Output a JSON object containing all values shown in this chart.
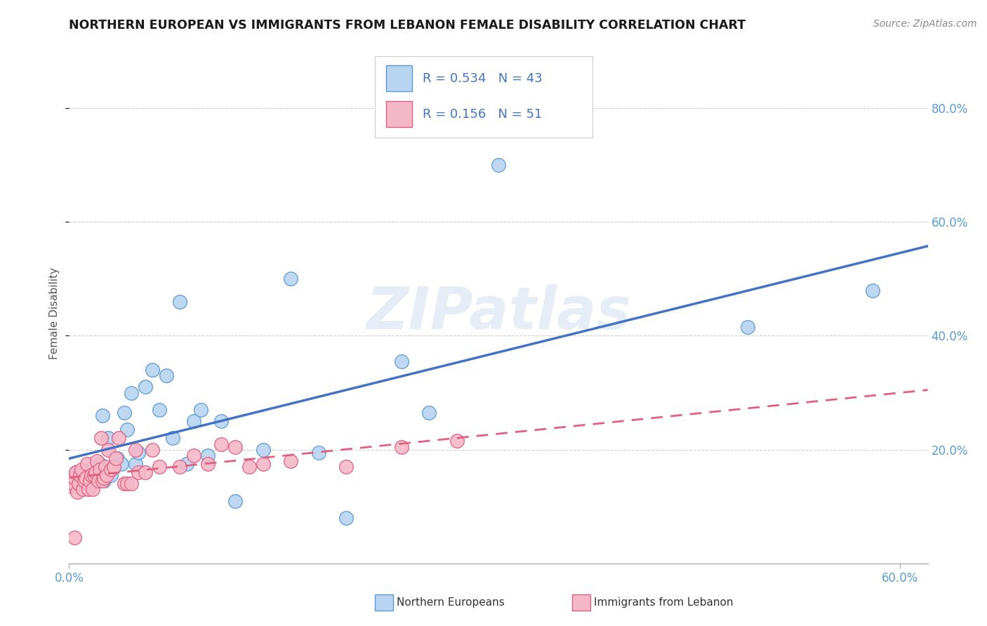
{
  "title": "NORTHERN EUROPEAN VS IMMIGRANTS FROM LEBANON FEMALE DISABILITY CORRELATION CHART",
  "source": "Source: ZipAtlas.com",
  "ylabel": "Female Disability",
  "xlim": [
    0.0,
    0.62
  ],
  "ylim": [
    0.0,
    0.88
  ],
  "xtick_vals": [
    0.0,
    0.6
  ],
  "xtick_labels": [
    "0.0%",
    "60.0%"
  ],
  "ytick_vals": [
    0.2,
    0.4,
    0.6,
    0.8
  ],
  "ytick_labels": [
    "20.0%",
    "40.0%",
    "60.0%",
    "80.0%"
  ],
  "blue_R": 0.534,
  "blue_N": 43,
  "pink_R": 0.156,
  "pink_N": 51,
  "blue_color": "#b8d4f0",
  "pink_color": "#f5b8c8",
  "blue_edge_color": "#5b9bd5",
  "pink_edge_color": "#e06080",
  "blue_line_color": "#4472c4",
  "pink_line_color": "#e06080",
  "legend_label_blue": "Northern Europeans",
  "legend_label_pink": "Immigrants from Lebanon",
  "watermark": "ZIPatlas",
  "blue_x": [
    0.005,
    0.008,
    0.01,
    0.012,
    0.015,
    0.016,
    0.018,
    0.02,
    0.022,
    0.024,
    0.025,
    0.026,
    0.028,
    0.03,
    0.032,
    0.035,
    0.038,
    0.04,
    0.042,
    0.045,
    0.048,
    0.05,
    0.055,
    0.06,
    0.065,
    0.07,
    0.075,
    0.08,
    0.085,
    0.09,
    0.095,
    0.1,
    0.11,
    0.12,
    0.14,
    0.16,
    0.18,
    0.2,
    0.24,
    0.26,
    0.31,
    0.49,
    0.58
  ],
  "blue_y": [
    0.16,
    0.15,
    0.145,
    0.155,
    0.14,
    0.165,
    0.17,
    0.155,
    0.175,
    0.26,
    0.145,
    0.165,
    0.22,
    0.155,
    0.17,
    0.185,
    0.175,
    0.265,
    0.235,
    0.3,
    0.175,
    0.195,
    0.31,
    0.34,
    0.27,
    0.33,
    0.22,
    0.46,
    0.175,
    0.25,
    0.27,
    0.19,
    0.25,
    0.11,
    0.2,
    0.5,
    0.195,
    0.08,
    0.355,
    0.265,
    0.7,
    0.415,
    0.48
  ],
  "pink_x": [
    0.002,
    0.003,
    0.004,
    0.005,
    0.006,
    0.007,
    0.008,
    0.009,
    0.01,
    0.011,
    0.012,
    0.013,
    0.014,
    0.015,
    0.016,
    0.017,
    0.018,
    0.019,
    0.02,
    0.021,
    0.022,
    0.023,
    0.024,
    0.025,
    0.026,
    0.027,
    0.028,
    0.03,
    0.032,
    0.034,
    0.036,
    0.04,
    0.042,
    0.045,
    0.048,
    0.05,
    0.055,
    0.06,
    0.065,
    0.08,
    0.09,
    0.1,
    0.11,
    0.12,
    0.13,
    0.14,
    0.16,
    0.2,
    0.24,
    0.28,
    0.004
  ],
  "pink_y": [
    0.135,
    0.14,
    0.15,
    0.16,
    0.125,
    0.14,
    0.155,
    0.165,
    0.13,
    0.145,
    0.15,
    0.175,
    0.13,
    0.145,
    0.155,
    0.13,
    0.155,
    0.16,
    0.18,
    0.145,
    0.165,
    0.22,
    0.145,
    0.15,
    0.17,
    0.155,
    0.2,
    0.165,
    0.17,
    0.185,
    0.22,
    0.14,
    0.14,
    0.14,
    0.2,
    0.16,
    0.16,
    0.2,
    0.17,
    0.17,
    0.19,
    0.175,
    0.21,
    0.205,
    0.17,
    0.175,
    0.18,
    0.17,
    0.205,
    0.215,
    0.045
  ]
}
